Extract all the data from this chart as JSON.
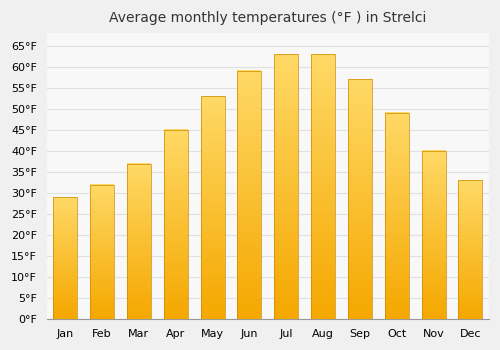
{
  "title": "Average monthly temperatures (°F ) in Strelci",
  "months": [
    "Jan",
    "Feb",
    "Mar",
    "Apr",
    "May",
    "Jun",
    "Jul",
    "Aug",
    "Sep",
    "Oct",
    "Nov",
    "Dec"
  ],
  "values": [
    29,
    32,
    37,
    45,
    53,
    59,
    63,
    63,
    57,
    49,
    40,
    33
  ],
  "bar_color_top": "#FFD966",
  "bar_color_bottom": "#F5A800",
  "bar_edge_color": "#CC8800",
  "ylim": [
    0,
    68
  ],
  "yticks": [
    0,
    5,
    10,
    15,
    20,
    25,
    30,
    35,
    40,
    45,
    50,
    55,
    60,
    65
  ],
  "ylabel_suffix": "°F",
  "background_color": "#F0F0F0",
  "plot_bg_color": "#F8F8F8",
  "grid_color": "#E0E0E0",
  "title_fontsize": 10,
  "tick_fontsize": 8,
  "bar_width": 0.65
}
